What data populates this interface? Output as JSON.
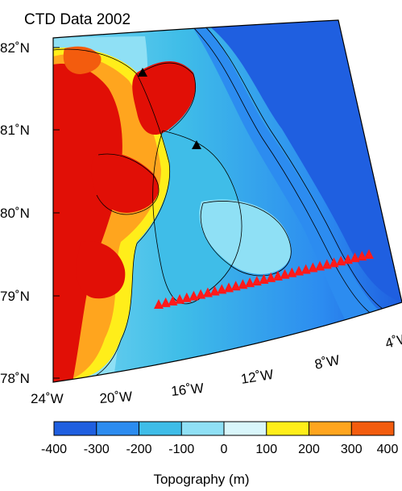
{
  "title": "CTD Data 2002",
  "latitude_labels": [
    "82˚N",
    "81˚N",
    "80˚N",
    "79˚N",
    "78˚N"
  ],
  "longitude_labels": [
    "24˚W",
    "20˚W",
    "16˚W",
    "12˚W",
    "8˚W",
    "4˚W"
  ],
  "colorbar": {
    "title": "Topography (m)",
    "ticks": [
      "-400",
      "-300",
      "-200",
      "-100",
      "0",
      "100",
      "200",
      "300",
      "400"
    ],
    "colors": [
      "#1f5fe0",
      "#2c8cf0",
      "#3fbde8",
      "#8fe0f5",
      "#d9f6fb",
      "#ffee1a",
      "#ffa51e",
      "#f35c0e",
      "#e10f06"
    ]
  },
  "markers": {
    "ctd_triangle_color": "#ff1a1a",
    "station_triangle_color": "#000000"
  }
}
